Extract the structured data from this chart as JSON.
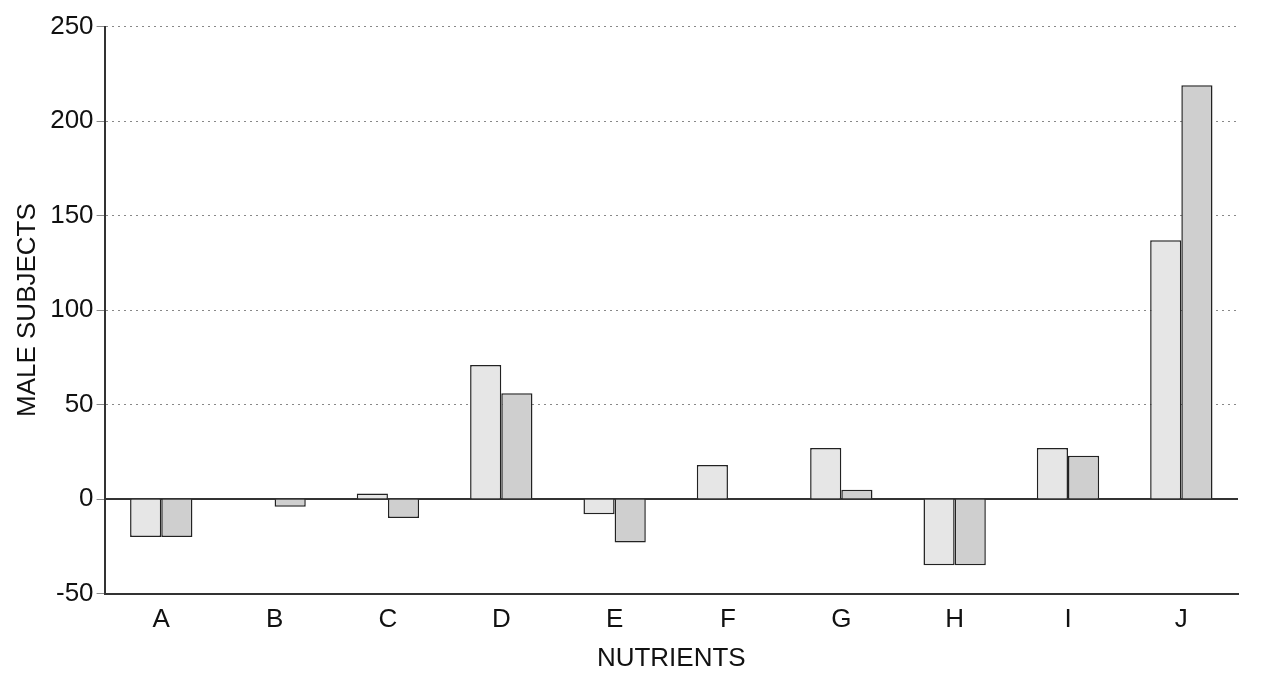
{
  "chart_data": {
    "type": "bar",
    "xlabel": "NUTRIENTS",
    "ylabel": "MALE SUBJECTS",
    "categories": [
      "A",
      "B",
      "C",
      "D",
      "E",
      "F",
      "G",
      "H",
      "I",
      "J"
    ],
    "series": [
      {
        "color": "#e6e6e6",
        "values": [
          -20,
          null,
          3,
          71,
          -8,
          18,
          27,
          -35,
          27,
          137
        ]
      },
      {
        "color": "#cfcfcf",
        "values": [
          -20,
          -4,
          -10,
          56,
          -23,
          null,
          5,
          -35,
          23,
          219
        ]
      }
    ],
    "ylim": [
      -50,
      250
    ],
    "yticks": [
      -50,
      0,
      50,
      100,
      150,
      200,
      250
    ],
    "grid": "y",
    "legend": false,
    "ref_lines": [
      {
        "axis": "y",
        "value": 0,
        "color": "#333333"
      }
    ]
  }
}
